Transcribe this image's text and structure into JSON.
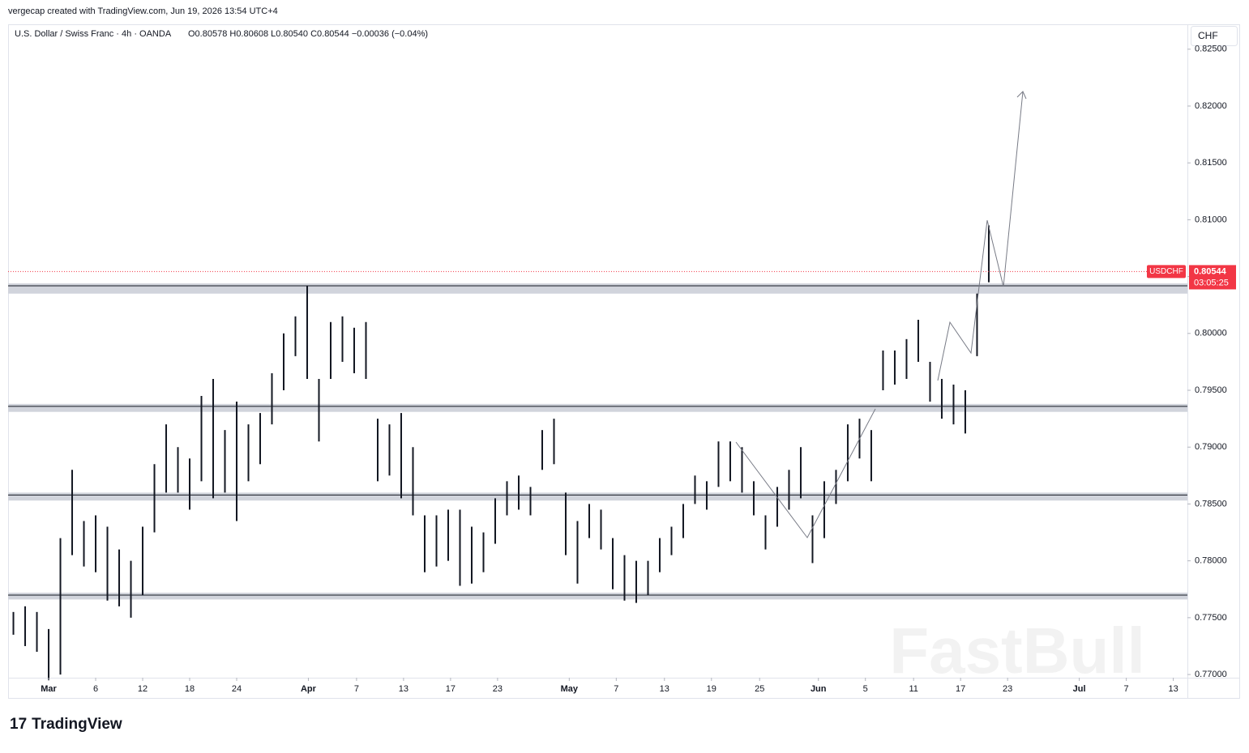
{
  "credit": "vergecap created with TradingView.com, Jun 19, 2026 13:54 UTC+4",
  "chart_data": {
    "type": "hilo",
    "title": "U.S. Dollar / Swiss Franc · 4h · OANDA",
    "ohlc_text": "O0.80578 H0.80608 L0.80540 C0.80544 −0.00036 (−0.04%)",
    "currency": "CHF",
    "symbol": "USDCHF",
    "last_price": 0.80544,
    "countdown": "03:05:25",
    "color": "#131722",
    "x": [
      -3,
      -2,
      -1,
      0,
      1,
      2,
      3,
      4,
      5,
      6,
      7,
      8,
      9,
      10,
      11,
      12,
      13,
      14,
      15,
      16,
      17,
      18,
      19,
      20,
      21,
      22,
      23,
      24,
      25,
      26,
      27,
      28,
      29,
      30,
      31,
      32,
      33,
      34,
      35,
      36,
      37,
      38,
      39,
      40,
      41,
      42,
      43,
      44,
      45,
      46,
      47,
      48,
      49,
      50,
      51,
      52,
      53,
      54,
      55,
      56,
      57,
      58,
      59,
      60,
      61,
      62,
      63,
      64,
      65,
      66,
      67,
      68,
      69,
      70,
      71,
      72,
      73,
      74,
      75,
      76,
      77,
      78,
      79,
      80
    ],
    "high": [
      0.7755,
      0.776,
      0.7755,
      0.774,
      0.782,
      0.788,
      0.7835,
      0.784,
      0.783,
      0.781,
      0.78,
      0.783,
      0.7885,
      0.792,
      0.79,
      0.789,
      0.7945,
      0.796,
      0.7915,
      0.794,
      0.792,
      0.793,
      0.7965,
      0.8,
      0.8015,
      0.8042,
      0.796,
      0.801,
      0.8015,
      0.8005,
      0.801,
      0.7925,
      0.792,
      0.793,
      0.79,
      0.784,
      0.784,
      0.7845,
      0.7845,
      0.783,
      0.7825,
      0.7855,
      0.787,
      0.7875,
      0.7865,
      0.7915,
      0.7925,
      0.786,
      0.7835,
      0.785,
      0.7845,
      0.782,
      0.7805,
      0.78,
      0.78,
      0.782,
      0.783,
      0.785,
      0.7875,
      0.787,
      0.7905,
      0.7905,
      0.79,
      0.787,
      0.784,
      0.7865,
      0.788,
      0.79,
      0.784,
      0.787,
      0.788,
      0.792,
      0.7925,
      0.7915,
      0.7985,
      0.7985,
      0.7995,
      0.8012,
      0.7975,
      0.796,
      0.7955,
      0.795,
      0.8035,
      0.8095
    ],
    "low": [
      0.7735,
      0.7725,
      0.772,
      0.7695,
      0.77,
      0.7805,
      0.7795,
      0.779,
      0.7765,
      0.776,
      0.775,
      0.777,
      0.7825,
      0.786,
      0.786,
      0.7845,
      0.787,
      0.7855,
      0.786,
      0.7835,
      0.787,
      0.7885,
      0.792,
      0.795,
      0.798,
      0.796,
      0.7905,
      0.796,
      0.7975,
      0.7965,
      0.796,
      0.787,
      0.7875,
      0.7855,
      0.784,
      0.779,
      0.7795,
      0.78,
      0.7778,
      0.778,
      0.779,
      0.7815,
      0.784,
      0.7845,
      0.784,
      0.788,
      0.7885,
      0.7805,
      0.778,
      0.782,
      0.781,
      0.7775,
      0.7765,
      0.7763,
      0.777,
      0.779,
      0.7805,
      0.782,
      0.785,
      0.7845,
      0.7865,
      0.787,
      0.786,
      0.784,
      0.781,
      0.783,
      0.7845,
      0.7855,
      0.7798,
      0.782,
      0.785,
      0.787,
      0.789,
      0.787,
      0.795,
      0.7955,
      0.796,
      0.7975,
      0.794,
      0.7925,
      0.792,
      0.7912,
      0.798,
      0.8045
    ],
    "zones": [
      [
        0.8035,
        0.8044
      ],
      [
        0.7931,
        0.7938
      ],
      [
        0.7853,
        0.786
      ],
      [
        0.7766,
        0.7772
      ]
    ],
    "xlim": [
      -3.45,
      96.9
    ],
    "xticks": [
      {
        "value": 0,
        "label": "Mar"
      },
      {
        "value": 4,
        "label": "6"
      },
      {
        "value": 8,
        "label": "12"
      },
      {
        "value": 12,
        "label": "18"
      },
      {
        "value": 16,
        "label": "24"
      },
      {
        "value": 22.1,
        "label": "Apr"
      },
      {
        "value": 26.2,
        "label": "7"
      },
      {
        "value": 30.2,
        "label": "13"
      },
      {
        "value": 34.2,
        "label": "17"
      },
      {
        "value": 38.2,
        "label": "23"
      },
      {
        "value": 44.3,
        "label": "May"
      },
      {
        "value": 48.3,
        "label": "7"
      },
      {
        "value": 52.4,
        "label": "13"
      },
      {
        "value": 56.4,
        "label": "19"
      },
      {
        "value": 60.5,
        "label": "25"
      },
      {
        "value": 65.5,
        "label": "Jun"
      },
      {
        "value": 69.5,
        "label": "5"
      },
      {
        "value": 73.6,
        "label": "11"
      },
      {
        "value": 77.6,
        "label": "17"
      },
      {
        "value": 81.6,
        "label": "23"
      },
      {
        "value": 87.7,
        "label": "Jul"
      },
      {
        "value": 91.7,
        "label": "7"
      },
      {
        "value": 95.7,
        "label": "13"
      }
    ],
    "ylim": [
      0.76972,
      0.82719
    ],
    "yticks": [
      {
        "value": 0.825,
        "label": "0.82500"
      },
      {
        "value": 0.82,
        "label": "0.82000"
      },
      {
        "value": 0.815,
        "label": "0.81500"
      },
      {
        "value": 0.81,
        "label": "0.81000"
      },
      {
        "value": 0.805,
        "label": "0.80500"
      },
      {
        "value": 0.8,
        "label": "0.80000"
      },
      {
        "value": 0.795,
        "label": "0.79500"
      },
      {
        "value": 0.79,
        "label": "0.79000"
      },
      {
        "value": 0.785,
        "label": "0.78500"
      },
      {
        "value": 0.78,
        "label": "0.78000"
      },
      {
        "value": 0.775,
        "label": "0.77500"
      },
      {
        "value": 0.77,
        "label": "0.77000"
      }
    ],
    "watermark": "FastBull"
  },
  "footer": {
    "logo": "TradingView"
  }
}
